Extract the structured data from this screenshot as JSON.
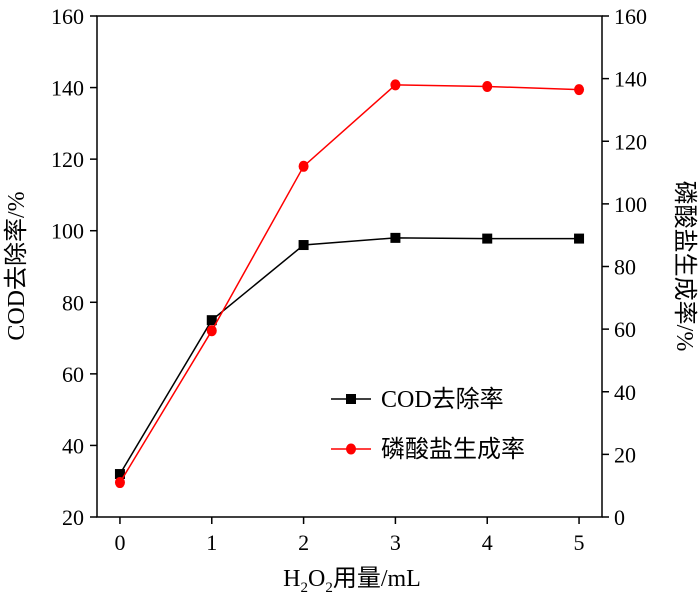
{
  "chart_data": {
    "type": "line",
    "x": [
      0,
      1,
      2,
      3,
      4,
      5
    ],
    "xlim": [
      -0.25,
      5.25
    ],
    "xticks": [
      "0",
      "1",
      "2",
      "3",
      "4",
      "5"
    ],
    "xlabel": {
      "parts": [
        "H",
        "2",
        "O",
        "2",
        "用量/mL"
      ]
    },
    "ylabel_left": "COD去除率/%",
    "ylabel_right": "磷酸盐生成率/%",
    "ylim_left": [
      20,
      160
    ],
    "ylim_right": [
      0,
      160
    ],
    "yticks_left": [
      "20",
      "40",
      "60",
      "80",
      "100",
      "120",
      "140",
      "160"
    ],
    "yticks_right": [
      "0",
      "20",
      "40",
      "60",
      "80",
      "100",
      "120",
      "140",
      "160"
    ],
    "grid": false,
    "legend_position": "bottom-right",
    "series": [
      {
        "name": "COD去除率",
        "axis": "left",
        "color": "#000000",
        "marker": "square",
        "values": [
          32,
          75,
          96,
          98,
          97.8,
          97.8
        ]
      },
      {
        "name": "磷酸盐生成率",
        "axis": "right",
        "color": "#ff0000",
        "marker": "circle",
        "values": [
          11,
          59.5,
          112,
          138,
          137.5,
          136.5
        ]
      }
    ]
  }
}
